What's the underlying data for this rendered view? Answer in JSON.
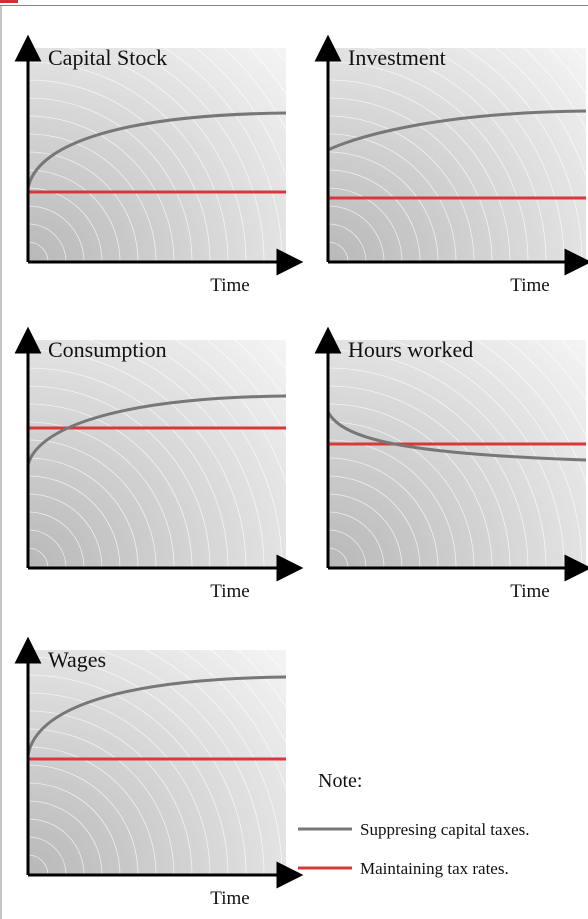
{
  "panels": [
    {
      "title": "Capital Stock",
      "x_label": "Time"
    },
    {
      "title": "Investment",
      "x_label": "Time"
    },
    {
      "title": "Consumption",
      "x_label": "Time"
    },
    {
      "title": "Hours worked",
      "x_label": "Time"
    },
    {
      "title": "Wages",
      "x_label": "Time"
    }
  ],
  "note": {
    "title": "Note:",
    "entries": [
      "Suppresing capital taxes.",
      "Maintaining tax rates."
    ]
  }
}
